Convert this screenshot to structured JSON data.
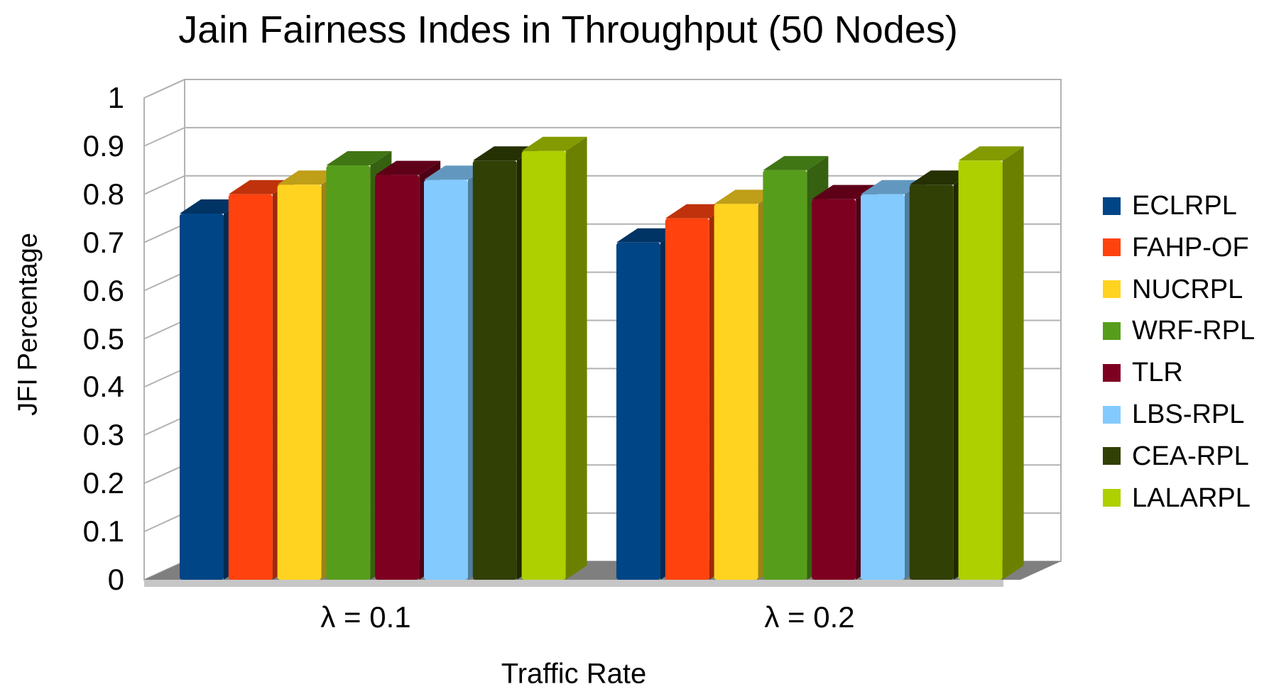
{
  "chart_data": {
    "type": "bar",
    "projection": "3d",
    "title": "Jain Fairness Indes in Throughput (50 Nodes)",
    "xlabel": "Traffic Rate",
    "ylabel": "JFI Percentage",
    "categories": [
      "λ = 0.1",
      "λ = 0.2"
    ],
    "ylim": [
      0,
      1
    ],
    "ytick_step": 0.1,
    "yticks": [
      "0",
      "0.1",
      "0.2",
      "0.3",
      "0.4",
      "0.5",
      "0.6",
      "0.7",
      "0.8",
      "0.9",
      "1"
    ],
    "grid": true,
    "legend_position": "right",
    "series": [
      {
        "name": "ECLRPL",
        "color": "#004586",
        "values": [
          0.76,
          0.7
        ]
      },
      {
        "name": "FAHP-OF",
        "color": "#FF420E",
        "values": [
          0.8,
          0.75
        ]
      },
      {
        "name": "NUCRPL",
        "color": "#FFD320",
        "values": [
          0.82,
          0.78
        ]
      },
      {
        "name": "WRF-RPL",
        "color": "#579D1C",
        "values": [
          0.86,
          0.85
        ]
      },
      {
        "name": "TLR",
        "color": "#7E0021",
        "values": [
          0.84,
          0.79
        ]
      },
      {
        "name": "LBS-RPL",
        "color": "#83CAFF",
        "values": [
          0.83,
          0.8
        ]
      },
      {
        "name": "CEA-RPL",
        "color": "#314004",
        "values": [
          0.87,
          0.82
        ]
      },
      {
        "name": "LALARPL",
        "color": "#AECF00",
        "values": [
          0.89,
          0.87
        ]
      }
    ],
    "colors": {
      "gridline": "#b2b2b2",
      "wall": "#ffffff",
      "floor_top": "#7f7f7f",
      "floor_front": "#c6c6c6",
      "text": "#000000"
    }
  }
}
